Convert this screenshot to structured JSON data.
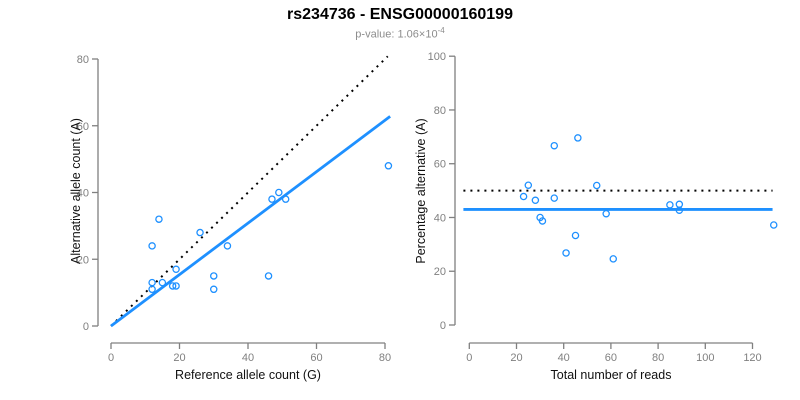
{
  "header": {
    "title": "rs234736 - ENSG00000160199",
    "subtitle_label": "p-value:",
    "subtitle_mantissa": "1.06×10",
    "subtitle_exponent": "-4"
  },
  "colors": {
    "points": "#1e90ff",
    "fit_line": "#1e90ff",
    "reference_line": "#000000",
    "axis": "#808080",
    "tick_label": "#808080",
    "axis_title": "#111111",
    "subtitle": "#8c8c8c"
  },
  "chart_data": [
    {
      "type": "scatter",
      "name": "allele-counts-scatter",
      "xlabel": "Reference allele count (G)",
      "ylabel": "Alternative allele count (A)",
      "xlim": [
        0,
        80
      ],
      "ylim": [
        0,
        80
      ],
      "xticks": [
        0,
        20,
        40,
        60,
        80
      ],
      "yticks": [
        0,
        20,
        40,
        60,
        80
      ],
      "grid": false,
      "legend": "none",
      "points": [
        [
          12,
          24
        ],
        [
          14,
          32
        ],
        [
          26,
          28
        ],
        [
          34,
          24
        ],
        [
          12,
          13
        ],
        [
          12,
          11
        ],
        [
          15,
          13
        ],
        [
          19,
          17
        ],
        [
          18,
          12
        ],
        [
          19,
          12
        ],
        [
          30,
          15
        ],
        [
          30,
          11
        ],
        [
          46,
          15
        ],
        [
          47,
          38
        ],
        [
          49,
          40
        ],
        [
          51,
          38
        ],
        [
          81,
          48
        ]
      ],
      "lines": [
        {
          "name": "identity-line",
          "style": "dotted",
          "color": "#000000",
          "from": [
            0,
            0
          ],
          "to": [
            80.8,
            80.8
          ]
        },
        {
          "name": "fit-line",
          "style": "solid",
          "color": "#1e90ff",
          "from": [
            0,
            0
          ],
          "to": [
            81.5,
            62.8
          ]
        }
      ]
    },
    {
      "type": "scatter",
      "name": "percentage-alternative-scatter",
      "xlabel": "Total number of reads",
      "ylabel": "Percentage alternative (A)",
      "xlim": [
        0,
        120
      ],
      "ylim": [
        0,
        100
      ],
      "xticks": [
        0,
        20,
        40,
        60,
        80,
        100,
        120
      ],
      "yticks": [
        0,
        20,
        40,
        60,
        80,
        100
      ],
      "grid": false,
      "legend": "none",
      "points": [
        [
          36,
          66.7
        ],
        [
          46,
          69.6
        ],
        [
          25,
          52.0
        ],
        [
          54,
          51.9
        ],
        [
          23,
          47.8
        ],
        [
          28,
          46.4
        ],
        [
          36,
          47.2
        ],
        [
          30,
          40.0
        ],
        [
          31,
          38.7
        ],
        [
          58,
          41.4
        ],
        [
          45,
          33.3
        ],
        [
          41,
          26.8
        ],
        [
          61,
          24.6
        ],
        [
          85,
          44.7
        ],
        [
          89,
          44.9
        ],
        [
          89,
          42.7
        ],
        [
          129,
          37.2
        ]
      ],
      "lines": [
        {
          "name": "expected-50pct-line",
          "style": "dotted",
          "color": "#000000",
          "from": [
            -2.5,
            50
          ],
          "to": [
            128.5,
            50
          ]
        },
        {
          "name": "fit-mean-line",
          "style": "solid",
          "color": "#1e90ff",
          "from": [
            -2.5,
            43
          ],
          "to": [
            128.5,
            43
          ]
        }
      ]
    }
  ]
}
